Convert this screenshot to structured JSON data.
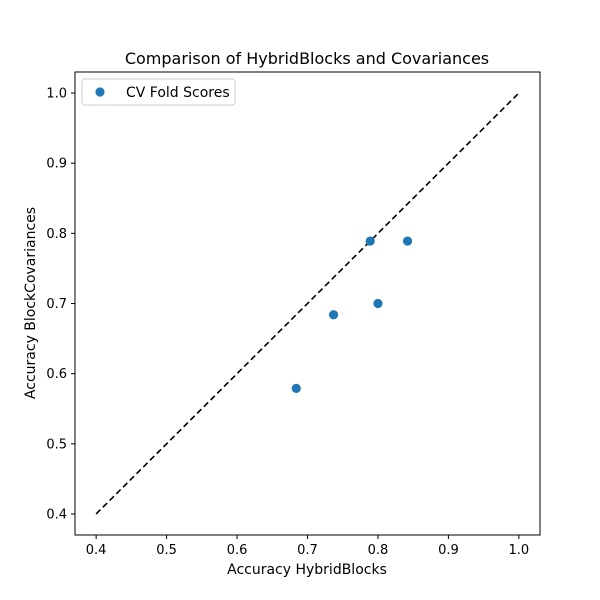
{
  "chart_data": {
    "type": "scatter",
    "title": "Comparison of HybridBlocks and Covariances",
    "xlabel": "Accuracy HybridBlocks",
    "ylabel": "Accuracy BlockCovariances",
    "xlim": [
      0.37,
      1.03
    ],
    "ylim": [
      0.37,
      1.03
    ],
    "x_ticks": [
      "0.4",
      "0.5",
      "0.6",
      "0.7",
      "0.8",
      "0.9",
      "1.0"
    ],
    "y_ticks": [
      "0.4",
      "0.5",
      "0.6",
      "0.7",
      "0.8",
      "0.9",
      "1.0"
    ],
    "reference_line": {
      "from": [
        0.4,
        0.4
      ],
      "to": [
        1.0,
        1.0
      ],
      "style": "dashed",
      "color": "#000000"
    },
    "series": [
      {
        "name": "CV Fold Scores",
        "color": "#1f77b4",
        "points": [
          {
            "x": 0.684,
            "y": 0.579
          },
          {
            "x": 0.737,
            "y": 0.684
          },
          {
            "x": 0.789,
            "y": 0.789
          },
          {
            "x": 0.8,
            "y": 0.7
          },
          {
            "x": 0.842,
            "y": 0.789
          }
        ]
      }
    ],
    "legend": {
      "position": "top-left"
    },
    "grid": false
  }
}
